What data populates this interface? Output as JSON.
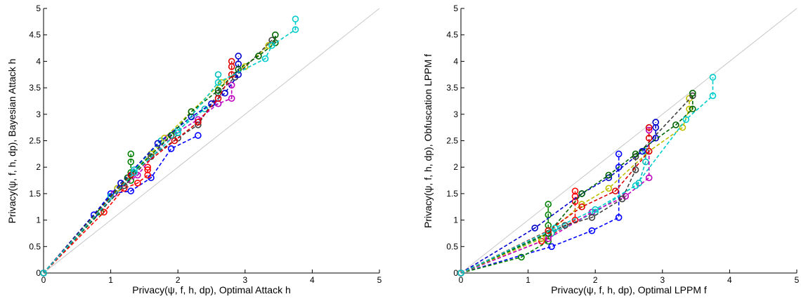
{
  "chart_data": [
    {
      "type": "scatter",
      "xlabel": "Privacy(ψ, f, h, dp), Optimal Attack h",
      "ylabel": "Privacy(ψ, f, h, dp), Bayesian Attack h",
      "xlim": [
        0,
        5
      ],
      "ylim": [
        0,
        5
      ],
      "xticks": [
        "0",
        "1",
        "2",
        "3",
        "4",
        "5"
      ],
      "yticks": [
        "0",
        "0.5",
        "1",
        "1.5",
        "2",
        "2.5",
        "3",
        "3.5",
        "4",
        "4.5",
        "5"
      ],
      "reference_line": "y = x",
      "marker": "circle",
      "line_style": "dashed",
      "series": [
        {
          "color": "#0000ff",
          "points": [
            [
              0,
              0
            ],
            [
              0.75,
              1.1
            ],
            [
              1.0,
              1.5
            ],
            [
              1.3,
              1.55
            ],
            [
              1.6,
              1.8
            ],
            [
              1.9,
              2.35
            ],
            [
              2.3,
              2.6
            ]
          ]
        },
        {
          "color": "#008000",
          "points": [
            [
              0,
              0
            ],
            [
              0.85,
              1.15
            ],
            [
              1.1,
              1.6
            ],
            [
              1.3,
              1.75
            ],
            [
              1.3,
              1.9
            ],
            [
              1.3,
              2.1
            ],
            [
              1.3,
              2.25
            ]
          ]
        },
        {
          "color": "#ff0000",
          "points": [
            [
              0,
              0
            ],
            [
              0.9,
              1.15
            ],
            [
              1.2,
              1.6
            ],
            [
              1.4,
              1.7
            ],
            [
              1.55,
              1.85
            ],
            [
              1.55,
              1.95
            ],
            [
              1.55,
              2.0
            ]
          ]
        },
        {
          "color": "#00bfbf",
          "points": [
            [
              0,
              0
            ],
            [
              1.0,
              1.45
            ],
            [
              1.35,
              1.95
            ],
            [
              1.75,
              2.5
            ],
            [
              2.0,
              2.7
            ],
            [
              2.4,
              3.1
            ],
            [
              2.6,
              3.2
            ],
            [
              2.6,
              3.75
            ]
          ]
        },
        {
          "color": "#bf00bf",
          "points": [
            [
              0,
              0
            ],
            [
              1.05,
              1.5
            ],
            [
              1.4,
              1.85
            ],
            [
              1.85,
              2.55
            ],
            [
              2.3,
              2.9
            ],
            [
              2.6,
              3.2
            ],
            [
              2.8,
              3.3
            ],
            [
              2.8,
              3.55
            ]
          ]
        },
        {
          "color": "#bfbf00",
          "points": [
            [
              0,
              0
            ],
            [
              1.1,
              1.6
            ],
            [
              1.6,
              2.25
            ],
            [
              1.8,
              2.55
            ],
            [
              2.2,
              3.05
            ],
            [
              2.65,
              3.6
            ],
            [
              3.0,
              3.9
            ],
            [
              3.35,
              4.3
            ]
          ]
        },
        {
          "color": "#404040",
          "points": [
            [
              0,
              0
            ],
            [
              1.2,
              1.65
            ],
            [
              1.6,
              2.2
            ],
            [
              2.0,
              2.55
            ],
            [
              2.3,
              2.8
            ],
            [
              2.6,
              3.4
            ],
            [
              2.85,
              3.7
            ],
            [
              3.4,
              4.4
            ]
          ]
        },
        {
          "color": "#0000cc",
          "points": [
            [
              0,
              0
            ],
            [
              1.15,
              1.7
            ],
            [
              1.7,
              2.45
            ],
            [
              2.2,
              2.95
            ],
            [
              2.5,
              3.2
            ],
            [
              2.7,
              3.4
            ],
            [
              2.9,
              3.75
            ],
            [
              2.9,
              3.95
            ],
            [
              2.9,
              4.1
            ]
          ]
        },
        {
          "color": "#006400",
          "points": [
            [
              0,
              0
            ],
            [
              1.25,
              1.8
            ],
            [
              1.9,
              2.6
            ],
            [
              2.2,
              3.05
            ],
            [
              2.6,
              3.45
            ],
            [
              2.9,
              3.85
            ],
            [
              3.2,
              4.1
            ],
            [
              3.45,
              4.35
            ],
            [
              3.45,
              4.5
            ]
          ]
        },
        {
          "color": "#dd0000",
          "points": [
            [
              0,
              0
            ],
            [
              1.3,
              1.85
            ],
            [
              1.95,
              2.5
            ],
            [
              2.3,
              2.85
            ],
            [
              2.6,
              3.3
            ],
            [
              2.8,
              3.75
            ],
            [
              2.8,
              3.9
            ],
            [
              2.8,
              4.0
            ]
          ]
        },
        {
          "color": "#00cccc",
          "points": [
            [
              0,
              0
            ],
            [
              1.35,
              1.9
            ],
            [
              2.0,
              2.65
            ],
            [
              2.6,
              3.6
            ],
            [
              3.3,
              4.05
            ],
            [
              3.4,
              4.3
            ],
            [
              3.75,
              4.6
            ],
            [
              3.75,
              4.8
            ]
          ]
        }
      ]
    },
    {
      "type": "scatter",
      "xlabel": "Privacy(ψ, f, h, dp), Optimal LPPM f",
      "ylabel": "Privacy(ψ, f, h, dp), Obfuscation LPPM f",
      "xlim": [
        0,
        5
      ],
      "ylim": [
        0,
        5
      ],
      "xticks": [
        "0",
        "1",
        "2",
        "3",
        "4",
        "5"
      ],
      "yticks": [
        "0",
        "0.5",
        "1",
        "1.5",
        "2",
        "2.5",
        "3",
        "3.5",
        "4",
        "4.5",
        "5"
      ],
      "reference_line": "y = x",
      "marker": "circle",
      "line_style": "dashed",
      "series": [
        {
          "color": "#0000ff",
          "points": [
            [
              0,
              0
            ],
            [
              1.35,
              0.5
            ],
            [
              1.95,
              0.8
            ],
            [
              2.35,
              1.05
            ],
            [
              2.35,
              2.0
            ],
            [
              2.35,
              2.25
            ]
          ]
        },
        {
          "color": "#008000",
          "points": [
            [
              0,
              0
            ],
            [
              0.9,
              0.3
            ],
            [
              1.3,
              0.6
            ],
            [
              1.3,
              0.9
            ],
            [
              1.3,
              1.1
            ],
            [
              1.3,
              1.3
            ]
          ]
        },
        {
          "color": "#ff0000",
          "points": [
            [
              0,
              0
            ],
            [
              1.2,
              0.6
            ],
            [
              1.7,
              1.0
            ],
            [
              1.7,
              1.35
            ],
            [
              1.7,
              1.45
            ],
            [
              1.7,
              1.55
            ]
          ]
        },
        {
          "color": "#00bfbf",
          "points": [
            [
              0,
              0
            ],
            [
              1.35,
              0.75
            ],
            [
              2.0,
              1.15
            ],
            [
              2.65,
              1.7
            ],
            [
              2.75,
              2.1
            ],
            [
              2.75,
              2.3
            ]
          ]
        },
        {
          "color": "#bf00bf",
          "points": [
            [
              0,
              0
            ],
            [
              1.3,
              0.65
            ],
            [
              1.95,
              1.15
            ],
            [
              2.45,
              1.45
            ],
            [
              2.8,
              1.8
            ],
            [
              2.8,
              2.7
            ]
          ]
        },
        {
          "color": "#bfbf00",
          "points": [
            [
              0,
              0
            ],
            [
              1.2,
              0.65
            ],
            [
              1.8,
              1.3
            ],
            [
              2.2,
              1.6
            ],
            [
              2.8,
              2.3
            ],
            [
              3.3,
              2.75
            ],
            [
              3.4,
              3.1
            ],
            [
              3.4,
              3.3
            ]
          ]
        },
        {
          "color": "#404040",
          "points": [
            [
              0,
              0
            ],
            [
              1.55,
              0.9
            ],
            [
              1.95,
              1.05
            ],
            [
              2.4,
              1.4
            ],
            [
              2.6,
              1.95
            ],
            [
              2.6,
              2.2
            ],
            [
              3.45,
              3.35
            ]
          ]
        },
        {
          "color": "#0000cc",
          "points": [
            [
              0,
              0
            ],
            [
              1.1,
              0.85
            ],
            [
              1.8,
              1.5
            ],
            [
              2.2,
              1.8
            ],
            [
              2.7,
              2.3
            ],
            [
              2.9,
              2.55
            ],
            [
              2.9,
              2.75
            ],
            [
              2.9,
              2.85
            ]
          ]
        },
        {
          "color": "#006400",
          "points": [
            [
              0,
              0
            ],
            [
              1.3,
              0.75
            ],
            [
              1.8,
              1.5
            ],
            [
              2.2,
              1.85
            ],
            [
              2.6,
              2.25
            ],
            [
              3.2,
              2.8
            ],
            [
              3.45,
              3.1
            ],
            [
              3.45,
              3.4
            ]
          ]
        },
        {
          "color": "#dd0000",
          "points": [
            [
              0,
              0
            ],
            [
              1.3,
              0.8
            ],
            [
              1.8,
              1.25
            ],
            [
              2.3,
              1.55
            ],
            [
              2.8,
              2.3
            ],
            [
              2.8,
              2.55
            ],
            [
              2.8,
              2.75
            ]
          ]
        },
        {
          "color": "#00cccc",
          "points": [
            [
              0,
              0
            ],
            [
              1.4,
              0.85
            ],
            [
              2.0,
              1.2
            ],
            [
              2.6,
              1.65
            ],
            [
              3.35,
              2.9
            ],
            [
              3.75,
              3.35
            ],
            [
              3.75,
              3.7
            ]
          ]
        }
      ]
    }
  ]
}
